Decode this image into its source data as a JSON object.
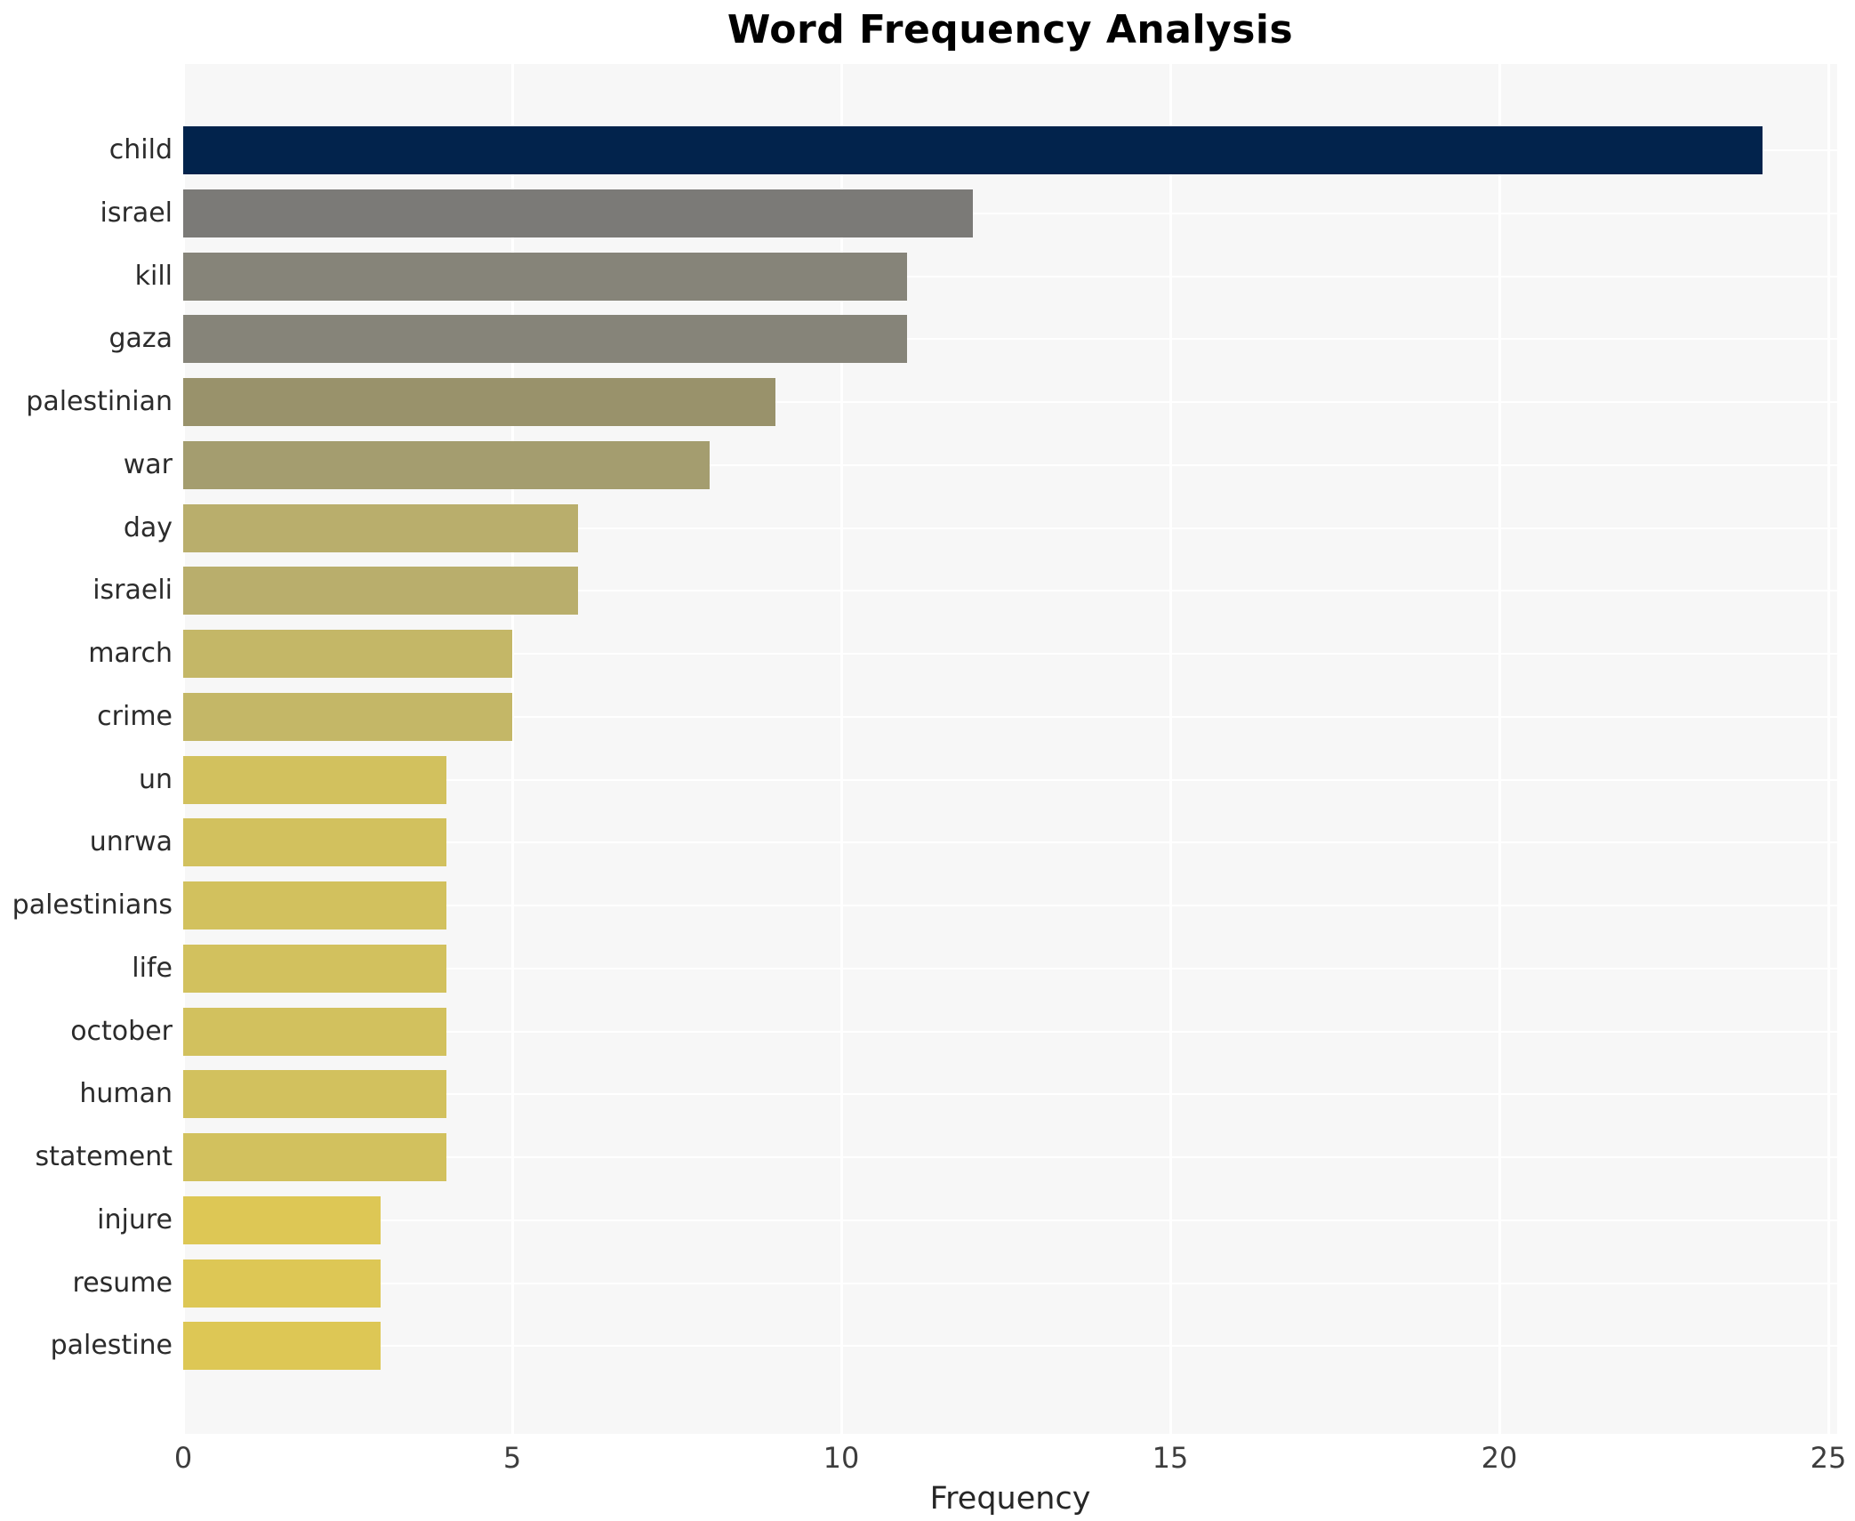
{
  "title": "Word Frequency Analysis",
  "chart_data": {
    "type": "bar",
    "orientation": "horizontal",
    "title": "Word Frequency Analysis",
    "xlabel": "Frequency",
    "ylabel": "",
    "xlim": [
      0,
      25
    ],
    "xticks": [
      "0",
      "5",
      "10",
      "15",
      "20",
      "25"
    ],
    "grid": true,
    "legend": "none",
    "categories": [
      "child",
      "israel",
      "kill",
      "gaza",
      "palestinian",
      "war",
      "day",
      "israeli",
      "march",
      "crime",
      "un",
      "unrwa",
      "palestinians",
      "life",
      "october",
      "human",
      "statement",
      "injure",
      "resume",
      "palestine"
    ],
    "values": [
      24,
      12,
      11,
      11,
      9,
      8,
      6,
      6,
      5,
      5,
      4,
      4,
      4,
      4,
      4,
      4,
      4,
      3,
      3,
      3
    ],
    "bar_colors": [
      "#02234c",
      "#7b7a77",
      "#868479",
      "#868479",
      "#99926b",
      "#a49d6f",
      "#b9ae6c",
      "#b9ae6c",
      "#c4b767",
      "#c4b767",
      "#d2c15e",
      "#d2c15e",
      "#d2c15e",
      "#d2c15e",
      "#d2c15e",
      "#d2c15e",
      "#d2c15e",
      "#ddc755",
      "#ddc755",
      "#ddc755"
    ],
    "panel_bg": "#f7f7f7",
    "grid_color": "#ffffff",
    "title_color": "#000000",
    "tick_color": "#3d3d3d",
    "label_color": "#2b2b2b"
  }
}
